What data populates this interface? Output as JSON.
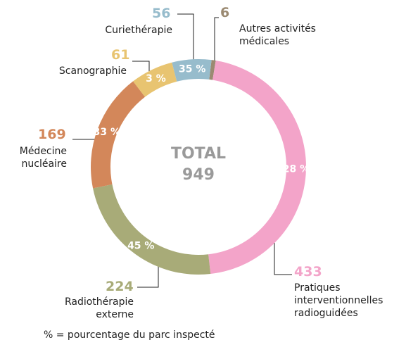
{
  "chart_data": {
    "type": "donut",
    "center_title": "TOTAL",
    "total": 949,
    "categories": [
      "Autres activités médicales",
      "Pratiques interventionnelles radioguidées",
      "Radiothérapie externe",
      "Médecine nucléaire",
      "Scanographie",
      "Curiethérapie"
    ],
    "values": [
      6,
      433,
      224,
      169,
      61,
      56
    ],
    "colors": [
      "#9b8a72",
      "#f3a4c9",
      "#a8ab78",
      "#d3875a",
      "#e8c471",
      "#97bccc"
    ],
    "percent_labels": [
      null,
      "28 %",
      "45 %",
      "33 %",
      "3 %",
      "35 %"
    ],
    "footnote": "% = pourcentage du parc inspecté"
  }
}
